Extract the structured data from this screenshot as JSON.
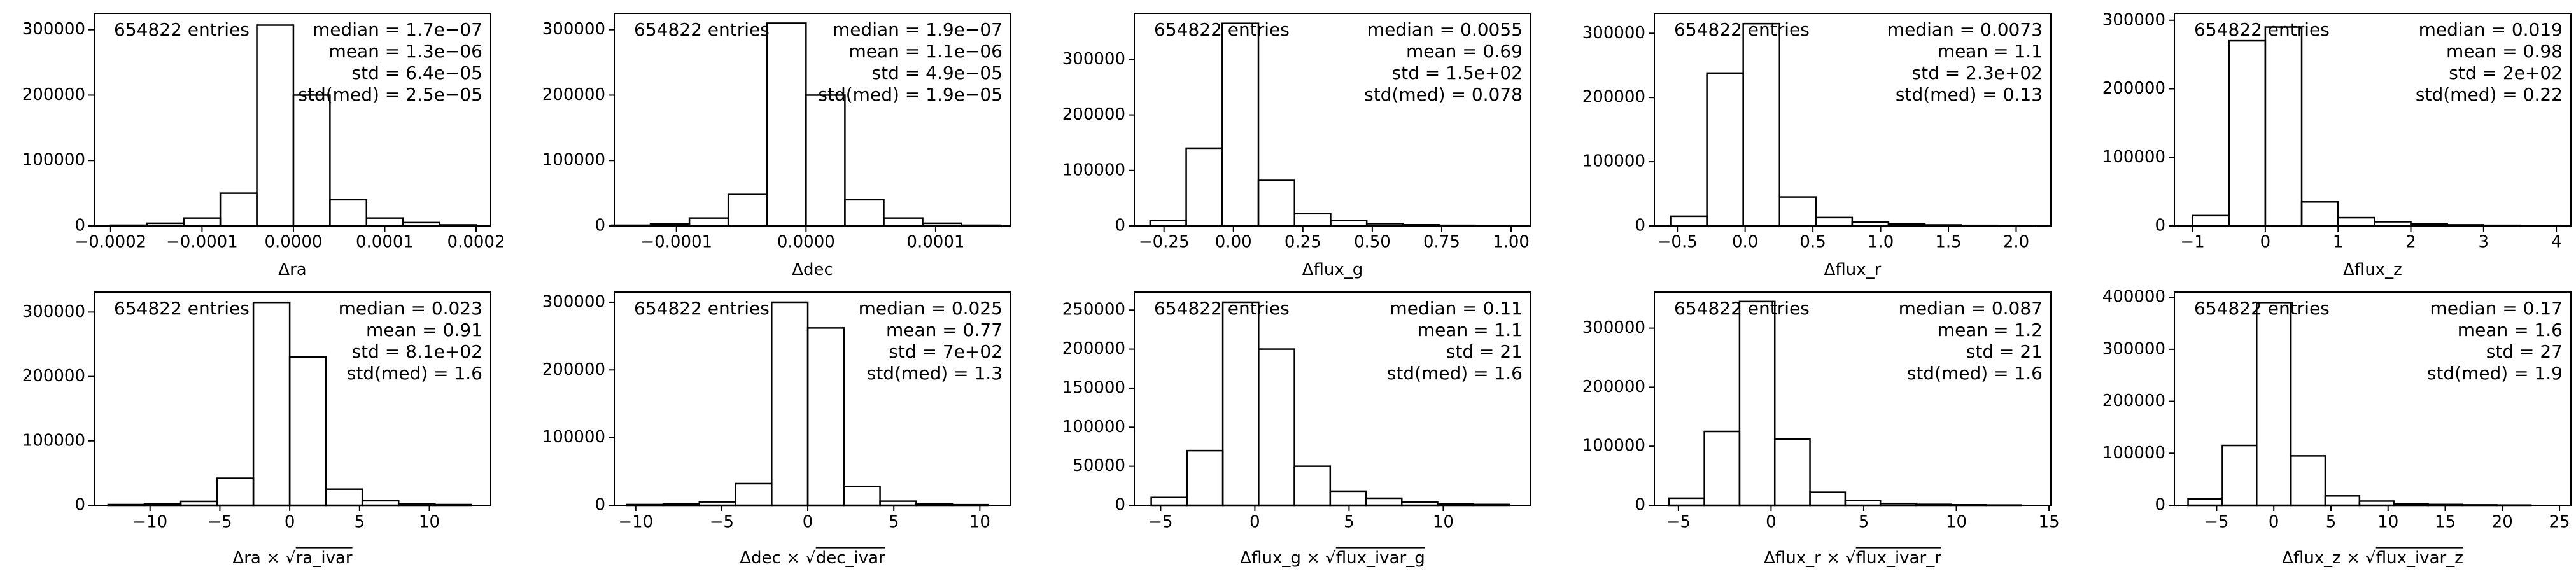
{
  "chart_data": [
    {
      "type": "histogram",
      "xlabel": [
        "Δra"
      ],
      "annotations": {
        "entries": "654822 entries",
        "stats": [
          "median = 1.7e−07",
          "mean = 1.3e−06",
          "std = 6.4e−05",
          "std(med) = 2.5e−05"
        ]
      },
      "bins": [
        -0.0002,
        -0.00016,
        -0.00012,
        -8e-05,
        -4e-05,
        0,
        4e-05,
        8e-05,
        0.00012,
        0.00016,
        0.0002
      ],
      "counts": [
        1000,
        4000,
        12000,
        50000,
        307000,
        200000,
        40000,
        12000,
        5000,
        1500
      ],
      "xlim": [
        -0.000218,
        0.000216
      ],
      "ylim": [
        0,
        325000
      ],
      "color": "#000000",
      "xticks": [
        {
          "value": -0.0002,
          "label": "−0.0002"
        },
        {
          "value": -0.0001,
          "label": "−0.0001"
        },
        {
          "value": 0,
          "label": "0.0000"
        },
        {
          "value": 0.0001,
          "label": "0.0001"
        },
        {
          "value": 0.0002,
          "label": "0.0002"
        }
      ],
      "yticks": [
        0,
        100000,
        200000,
        300000
      ]
    },
    {
      "type": "histogram",
      "xlabel": [
        "Δdec"
      ],
      "annotations": {
        "entries": "654822 entries",
        "stats": [
          "median = 1.9e−07",
          "mean = 1.1e−06",
          "std = 4.9e−05",
          "std(med) = 1.9e−05"
        ]
      },
      "bins": [
        -0.00015,
        -0.00012,
        -9e-05,
        -6e-05,
        -3e-05,
        0,
        3e-05,
        6e-05,
        9e-05,
        0.00012,
        0.00015
      ],
      "counts": [
        1000,
        3000,
        12000,
        48000,
        310000,
        200000,
        40000,
        12000,
        4000,
        1000
      ],
      "xlim": [
        -0.000148,
        0.000158
      ],
      "ylim": [
        0,
        325000
      ],
      "color": "#000000",
      "xticks": [
        {
          "value": -0.0001,
          "label": "−0.0001"
        },
        {
          "value": 0,
          "label": "0.0000"
        },
        {
          "value": 0.0001,
          "label": "0.0001"
        }
      ],
      "yticks": [
        0,
        100000,
        200000,
        300000
      ]
    },
    {
      "type": "histogram",
      "xlabel": [
        "Δflux_g"
      ],
      "annotations": {
        "entries": "654822 entries",
        "stats": [
          "median = 0.0055",
          "mean = 0.69",
          "std = 1.5e+02",
          "std(med) = 0.078"
        ]
      },
      "bins": [
        -0.3,
        -0.17,
        -0.04,
        0.09,
        0.22,
        0.35,
        0.48,
        0.61,
        0.74,
        0.87,
        1.0
      ],
      "counts": [
        10000,
        140000,
        365000,
        82000,
        22000,
        10000,
        4000,
        2000,
        1000,
        500
      ],
      "xlim": [
        -0.357,
        1.071
      ],
      "ylim": [
        0,
        383000
      ],
      "color": "#000000",
      "xticks": [
        {
          "value": -0.25,
          "label": "−0.25"
        },
        {
          "value": 0,
          "label": "0.00"
        },
        {
          "value": 0.25,
          "label": "0.25"
        },
        {
          "value": 0.5,
          "label": "0.50"
        },
        {
          "value": 0.75,
          "label": "0.75"
        },
        {
          "value": 1,
          "label": "1.00"
        }
      ],
      "yticks": [
        0,
        100000,
        200000,
        300000
      ]
    },
    {
      "type": "histogram",
      "xlabel": [
        "Δflux_r"
      ],
      "annotations": {
        "entries": "654822 entries",
        "stats": [
          "median = 0.0073",
          "mean = 1.1",
          "std = 2.3e+02",
          "std(med) = 0.13"
        ]
      },
      "bins": [
        -0.55,
        -0.282,
        -0.014,
        0.254,
        0.522,
        0.79,
        1.058,
        1.326,
        1.594,
        1.862,
        2.13
      ],
      "counts": [
        15000,
        238000,
        315000,
        45000,
        13000,
        6000,
        3000,
        1500,
        800,
        400
      ],
      "xlim": [
        -0.67,
        2.256
      ],
      "ylim": [
        0,
        331000
      ],
      "color": "#000000",
      "xticks": [
        {
          "value": -0.5,
          "label": "−0.5"
        },
        {
          "value": 0,
          "label": "0.0"
        },
        {
          "value": 0.5,
          "label": "0.5"
        },
        {
          "value": 1,
          "label": "1.0"
        },
        {
          "value": 1.5,
          "label": "1.5"
        },
        {
          "value": 2,
          "label": "2.0"
        }
      ],
      "yticks": [
        0,
        100000,
        200000,
        300000
      ]
    },
    {
      "type": "histogram",
      "xlabel": [
        "Δflux_z"
      ],
      "annotations": {
        "entries": "654822 entries",
        "stats": [
          "median = 0.019",
          "mean = 0.98",
          "std = 2e+02",
          "std(med) = 0.22"
        ]
      },
      "bins": [
        -1,
        -0.5,
        0,
        0.5,
        1,
        1.5,
        2,
        2.5,
        3,
        3.5,
        4
      ],
      "counts": [
        15000,
        270000,
        290000,
        35000,
        12000,
        6000,
        3000,
        1500,
        800,
        400
      ],
      "xlim": [
        -1.25,
        4.2
      ],
      "ylim": [
        0,
        310000
      ],
      "color": "#000000",
      "xticks": [
        {
          "value": -1,
          "label": "−1"
        },
        0,
        1,
        2,
        3,
        4
      ],
      "yticks": [
        0,
        100000,
        200000,
        300000
      ]
    },
    {
      "type": "histogram",
      "xlabel": [
        "Δra × √",
        "ra_ivar"
      ],
      "annotations": {
        "entries": "654822 entries",
        "stats": [
          "median = 0.023",
          "mean = 0.91",
          "std = 8.1e+02",
          "std(med) = 1.6"
        ]
      },
      "bins": [
        -13,
        -10.4,
        -7.8,
        -5.2,
        -2.6,
        0,
        2.6,
        5.2,
        7.8,
        10.4,
        13
      ],
      "counts": [
        1000,
        2000,
        6000,
        42000,
        315000,
        230000,
        25000,
        7000,
        2500,
        1000
      ],
      "xlim": [
        -14.0,
        14.4
      ],
      "ylim": [
        0,
        331000
      ],
      "color": "#000000",
      "xticks": [
        {
          "value": -10,
          "label": "−10"
        },
        {
          "value": -5,
          "label": "−5"
        },
        0,
        5,
        10
      ],
      "yticks": [
        0,
        100000,
        200000,
        300000
      ]
    },
    {
      "type": "histogram",
      "xlabel": [
        "Δdec × √",
        "dec_ivar"
      ],
      "annotations": {
        "entries": "654822 entries",
        "stats": [
          "median = 0.025",
          "mean = 0.77",
          "std = 7e+02",
          "std(med) = 1.3"
        ]
      },
      "bins": [
        -10.5,
        -8.4,
        -6.3,
        -4.2,
        -2.1,
        0,
        2.1,
        4.2,
        6.3,
        8.4,
        10.5
      ],
      "counts": [
        1000,
        2000,
        5000,
        32000,
        300000,
        262000,
        28000,
        6000,
        2000,
        800
      ],
      "xlim": [
        -11.25,
        11.8
      ],
      "ylim": [
        0,
        315000
      ],
      "color": "#000000",
      "xticks": [
        {
          "value": -10,
          "label": "−10"
        },
        {
          "value": -5,
          "label": "−5"
        },
        0,
        5,
        10
      ],
      "yticks": [
        0,
        100000,
        200000,
        300000
      ]
    },
    {
      "type": "histogram",
      "xlabel": [
        "Δflux_g × √",
        "flux_ivar_g"
      ],
      "annotations": {
        "entries": "654822 entries",
        "stats": [
          "median = 0.11",
          "mean = 1.1",
          "std = 21",
          "std(med) = 1.6"
        ]
      },
      "bins": [
        -5.5,
        -3.6,
        -1.7,
        0.2,
        2.1,
        4,
        5.9,
        7.8,
        9.7,
        11.6,
        13.5
      ],
      "counts": [
        10000,
        70000,
        260000,
        200000,
        50000,
        18000,
        9000,
        4000,
        2000,
        1000
      ],
      "xlim": [
        -6.4,
        14.65
      ],
      "ylim": [
        0,
        273000
      ],
      "color": "#000000",
      "xticks": [
        {
          "value": -5,
          "label": "−5"
        },
        0,
        5,
        10
      ],
      "yticks": [
        0,
        50000,
        100000,
        150000,
        200000,
        250000
      ]
    },
    {
      "type": "histogram",
      "xlabel": [
        "Δflux_r × √",
        "flux_ivar_r"
      ],
      "annotations": {
        "entries": "654822 entries",
        "stats": [
          "median = 0.087",
          "mean = 1.2",
          "std = 21",
          "std(med) = 1.6"
        ]
      },
      "bins": [
        -5.5,
        -3.6,
        -1.7,
        0.2,
        2.1,
        4,
        5.9,
        7.8,
        9.7,
        11.6,
        13.5
      ],
      "counts": [
        12000,
        125000,
        345000,
        112000,
        22000,
        8000,
        3000,
        1500,
        800,
        400
      ],
      "xlim": [
        -6.3,
        15.1
      ],
      "ylim": [
        0,
        361000
      ],
      "color": "#000000",
      "xticks": [
        {
          "value": -5,
          "label": "−5"
        },
        0,
        5,
        10,
        15
      ],
      "yticks": [
        0,
        100000,
        200000,
        300000
      ]
    },
    {
      "type": "histogram",
      "xlabel": [
        "Δflux_z × √",
        "flux_ivar_z"
      ],
      "annotations": {
        "entries": "654822 entries",
        "stats": [
          "median = 0.17",
          "mean = 1.6",
          "std = 27",
          "std(med) = 1.9"
        ]
      },
      "bins": [
        -7.5,
        -4.5,
        -1.5,
        1.5,
        4.5,
        7.5,
        10.5,
        13.5,
        16.5,
        19.5,
        22.5
      ],
      "counts": [
        12000,
        115000,
        390000,
        95000,
        18000,
        8000,
        3000,
        1500,
        800,
        400
      ],
      "xlim": [
        -8.7,
        26
      ],
      "ylim": [
        0,
        410000
      ],
      "color": "#000000",
      "xticks": [
        {
          "value": -5,
          "label": "−5"
        },
        0,
        5,
        10,
        15,
        20,
        25
      ],
      "yticks": [
        0,
        100000,
        200000,
        300000,
        400000
      ]
    }
  ]
}
